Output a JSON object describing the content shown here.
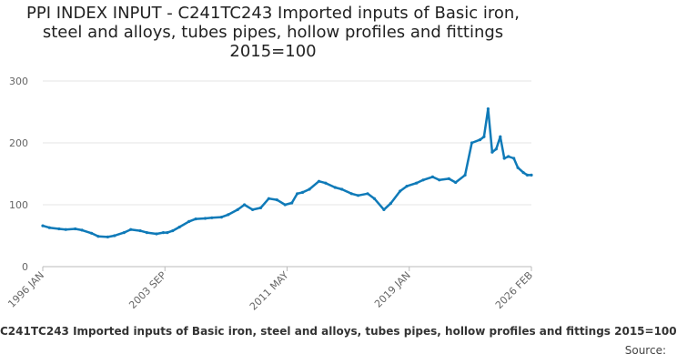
{
  "chart_data": {
    "type": "line",
    "title": "PPI INDEX INPUT - C241TC243 Imported inputs of Basic iron, steel and alloys, tubes pipes, hollow profiles and fittings 2015=100",
    "xlabel": "",
    "ylabel": "",
    "ylim": [
      0,
      300
    ],
    "y_ticks": [
      0,
      100,
      200,
      300
    ],
    "x_tick_labels": [
      "1996 JAN",
      "2003 SEP",
      "2011 MAY",
      "2019 JAN",
      "2026 FEB"
    ],
    "grid": true,
    "legend_position": "bottom",
    "series": [
      {
        "name": "C241TC243 Imported inputs of Basic iron, steel and alloys, tubes pipes, hollow profiles and fittings 2015=100",
        "color": "#0f7ab8",
        "points": [
          [
            "1996-01",
            66
          ],
          [
            "1996-06",
            63
          ],
          [
            "1997-01",
            61
          ],
          [
            "1997-06",
            60
          ],
          [
            "1998-01",
            61
          ],
          [
            "1998-06",
            59
          ],
          [
            "1999-01",
            54
          ],
          [
            "1999-06",
            49
          ],
          [
            "2000-01",
            48
          ],
          [
            "2000-06",
            50
          ],
          [
            "2001-01",
            55
          ],
          [
            "2001-06",
            60
          ],
          [
            "2002-01",
            58
          ],
          [
            "2002-06",
            55
          ],
          [
            "2003-01",
            53
          ],
          [
            "2003-06",
            55
          ],
          [
            "2003-09",
            55
          ],
          [
            "2004-01",
            58
          ],
          [
            "2004-06",
            64
          ],
          [
            "2005-01",
            73
          ],
          [
            "2005-06",
            77
          ],
          [
            "2006-01",
            78
          ],
          [
            "2006-06",
            79
          ],
          [
            "2007-01",
            80
          ],
          [
            "2007-06",
            84
          ],
          [
            "2008-01",
            92
          ],
          [
            "2008-06",
            100
          ],
          [
            "2008-12",
            92
          ],
          [
            "2009-06",
            95
          ],
          [
            "2009-12",
            110
          ],
          [
            "2010-06",
            108
          ],
          [
            "2010-12",
            100
          ],
          [
            "2011-05",
            103
          ],
          [
            "2011-09",
            118
          ],
          [
            "2012-01",
            120
          ],
          [
            "2012-06",
            125
          ],
          [
            "2013-01",
            138
          ],
          [
            "2013-06",
            135
          ],
          [
            "2014-01",
            128
          ],
          [
            "2014-06",
            125
          ],
          [
            "2015-01",
            118
          ],
          [
            "2015-06",
            115
          ],
          [
            "2016-01",
            118
          ],
          [
            "2016-06",
            110
          ],
          [
            "2017-01",
            92
          ],
          [
            "2017-06",
            102
          ],
          [
            "2018-01",
            122
          ],
          [
            "2018-06",
            130
          ],
          [
            "2019-01",
            135
          ],
          [
            "2019-06",
            140
          ],
          [
            "2020-01",
            145
          ],
          [
            "2020-06",
            140
          ],
          [
            "2021-01",
            142
          ],
          [
            "2021-06",
            136
          ],
          [
            "2022-01",
            148
          ],
          [
            "2022-06",
            200
          ],
          [
            "2022-12",
            205
          ],
          [
            "2023-03",
            210
          ],
          [
            "2023-06",
            255
          ],
          [
            "2023-09",
            185
          ],
          [
            "2023-12",
            190
          ],
          [
            "2024-03",
            210
          ],
          [
            "2024-06",
            175
          ],
          [
            "2024-09",
            178
          ],
          [
            "2025-01",
            175
          ],
          [
            "2025-04",
            160
          ],
          [
            "2025-08",
            152
          ],
          [
            "2025-11",
            148
          ],
          [
            "2026-02",
            148
          ]
        ]
      }
    ]
  },
  "footer": {
    "legend_label": "C241TC243 Imported inputs of Basic iron, steel and alloys, tubes pipes, hollow profiles and fittings 2015=100",
    "source_label": "Source:"
  }
}
